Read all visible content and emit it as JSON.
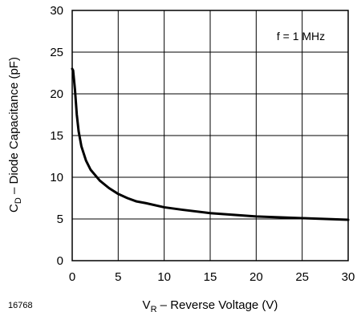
{
  "chart_data": {
    "type": "line",
    "figure_id": "16768",
    "xlabel": {
      "main": "V",
      "sub": "R",
      "rest": " – Reverse Voltage (V)"
    },
    "ylabel": {
      "main": "C",
      "sub": "D",
      "rest": " – Diode Capacitance (pF)"
    },
    "annotation": "f = 1 MHz",
    "xlim": [
      0,
      30
    ],
    "ylim": [
      0,
      30
    ],
    "x_ticks": [
      0,
      5,
      10,
      15,
      20,
      25,
      30
    ],
    "y_ticks": [
      0,
      5,
      10,
      15,
      20,
      25,
      30
    ],
    "grid": true,
    "series": [
      {
        "x": [
          0,
          0.1,
          0.3,
          0.5,
          0.7,
          1,
          1.5,
          2,
          3,
          4,
          5,
          6,
          7,
          8,
          10,
          12,
          15,
          20,
          25,
          30
        ],
        "y": [
          23,
          22.8,
          20.5,
          17.5,
          15.5,
          13.7,
          12,
          10.9,
          9.6,
          8.7,
          8,
          7.5,
          7.1,
          6.9,
          6.4,
          6.1,
          5.7,
          5.3,
          5.1,
          4.9
        ]
      }
    ]
  }
}
